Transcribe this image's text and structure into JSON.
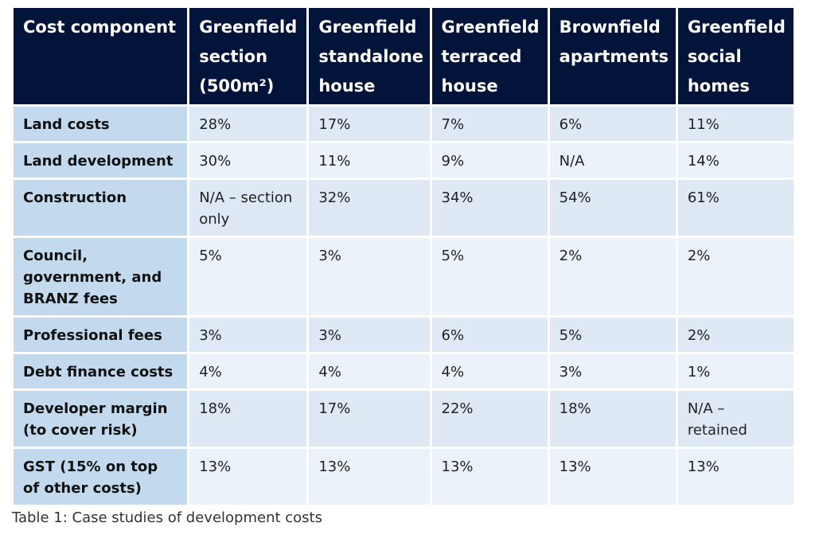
{
  "table": {
    "headers": [
      "Cost component",
      "Greenfield section (500m²)",
      "Greenfield standalone house",
      "Greenfield terraced house",
      "Brownfield apartments",
      "Greenfield social homes"
    ],
    "rows": [
      {
        "label": "Land costs",
        "values": [
          "28%",
          "17%",
          "7%",
          "6%",
          "11%"
        ]
      },
      {
        "label": "Land development",
        "values": [
          "30%",
          "11%",
          "9%",
          "N/A",
          "14%"
        ]
      },
      {
        "label": "Construction",
        "values": [
          "N/A – section only",
          "32%",
          "34%",
          "54%",
          "61%"
        ]
      },
      {
        "label": "Council, government, and BRANZ fees",
        "values": [
          "5%",
          "3%",
          "5%",
          "2%",
          "2%"
        ]
      },
      {
        "label": "Professional fees",
        "values": [
          "3%",
          "3%",
          "6%",
          "5%",
          "2%"
        ]
      },
      {
        "label": "Debt finance costs",
        "values": [
          "4%",
          "4%",
          "4%",
          "3%",
          "1%"
        ]
      },
      {
        "label": "Developer margin (to cover risk)",
        "values": [
          "18%",
          "17%",
          "22%",
          "18%",
          "N/A – retained"
        ]
      },
      {
        "label": "GST (15% on top of other costs)",
        "values": [
          "13%",
          "13%",
          "13%",
          "13%",
          "13%"
        ]
      }
    ]
  },
  "caption": "Table 1: Case studies of development costs",
  "colors": {
    "header_bg": "#03143a",
    "label_bg": "#c3daee",
    "row_odd": "#dfe9f5",
    "row_even": "#ecf2fa"
  }
}
